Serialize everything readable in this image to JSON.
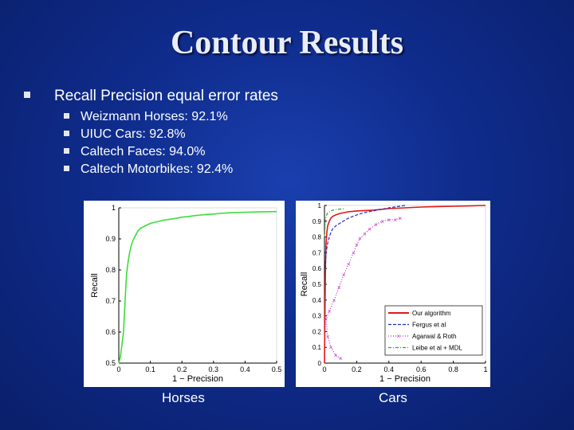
{
  "slide": {
    "title": "Contour Results",
    "main_bullet": "Recall Precision equal error rates",
    "sub_bullets": [
      "Weizmann Horses: 92.1%",
      "UIUC Cars: 92.8%",
      "Caltech Faces: 94.0%",
      "Caltech Motorbikes: 92.4%"
    ],
    "captions": {
      "left": "Horses",
      "right": "Cars"
    }
  },
  "colors": {
    "slide_bg": "#0f2c8c",
    "title": "#e9edf8",
    "bullet_square": "#e4e7f1"
  },
  "chart_data": [
    {
      "type": "line",
      "title": "",
      "xlabel": "1 − Precision",
      "ylabel": "Recall",
      "xlim": [
        0,
        0.5
      ],
      "ylim": [
        0.5,
        1
      ],
      "xticks": [
        "0",
        "0.1",
        "0.2",
        "0.3",
        "0.4",
        "0.5"
      ],
      "yticks": [
        "0.5",
        "0.6",
        "0.7",
        "0.8",
        "0.9",
        "1"
      ],
      "series": [
        {
          "color": "#3cdc3c",
          "style": "solid",
          "x": [
            0,
            0.005,
            0.01,
            0.015,
            0.018,
            0.02,
            0.022,
            0.025,
            0.03,
            0.035,
            0.04,
            0.045,
            0.05,
            0.055,
            0.06,
            0.07,
            0.08,
            0.09,
            0.1,
            0.12,
            0.14,
            0.16,
            0.18,
            0.2,
            0.22,
            0.24,
            0.26,
            0.28,
            0.3,
            0.32,
            0.35,
            0.4,
            0.45,
            0.5
          ],
          "y": [
            0.5,
            0.52,
            0.56,
            0.6,
            0.66,
            0.7,
            0.74,
            0.79,
            0.83,
            0.86,
            0.88,
            0.895,
            0.905,
            0.915,
            0.925,
            0.935,
            0.94,
            0.945,
            0.95,
            0.955,
            0.96,
            0.963,
            0.966,
            0.97,
            0.972,
            0.975,
            0.977,
            0.979,
            0.98,
            0.982,
            0.984,
            0.986,
            0.987,
            0.988
          ]
        }
      ]
    },
    {
      "type": "line",
      "title": "",
      "xlabel": "1 − Precision",
      "ylabel": "Recall",
      "xlim": [
        0,
        1
      ],
      "ylim": [
        0,
        1
      ],
      "xticks": [
        "0",
        "0.2",
        "0.4",
        "0.6",
        "0.8",
        "1"
      ],
      "yticks": [
        "0",
        "0.1",
        "0.2",
        "0.3",
        "0.4",
        "0.5",
        "0.6",
        "0.7",
        "0.8",
        "0.9",
        "1"
      ],
      "legend_position": "bottom-right",
      "series": [
        {
          "name": "Our algorithm",
          "color": "#e01818",
          "style": "solid",
          "x": [
            0,
            0.003,
            0.006,
            0.01,
            0.015,
            0.02,
            0.03,
            0.04,
            0.05,
            0.07,
            0.1,
            0.15,
            0.2,
            0.3,
            0.4,
            0.5,
            0.6,
            0.7,
            0.8,
            0.9,
            1
          ],
          "y": [
            0,
            0.3,
            0.6,
            0.76,
            0.83,
            0.87,
            0.9,
            0.92,
            0.93,
            0.94,
            0.95,
            0.96,
            0.965,
            0.97,
            0.98,
            0.985,
            0.99,
            0.993,
            0.995,
            0.997,
            1
          ]
        },
        {
          "name": "Fergus et al",
          "color": "#2030c0",
          "style": "dashed",
          "x": [
            0.005,
            0.01,
            0.02,
            0.03,
            0.04,
            0.05,
            0.07,
            0.1,
            0.15,
            0.2,
            0.25,
            0.3,
            0.35,
            0.4,
            0.5
          ],
          "y": [
            0.6,
            0.7,
            0.76,
            0.8,
            0.83,
            0.85,
            0.87,
            0.89,
            0.92,
            0.94,
            0.955,
            0.965,
            0.975,
            0.985,
            1
          ]
        },
        {
          "name": "Agarwal & Roth",
          "color": "#c030c0",
          "style": "dotted-x",
          "x": [
            0.1,
            0.07,
            0.04,
            0.02,
            0.01,
            0.03,
            0.06,
            0.09,
            0.12,
            0.15,
            0.18,
            0.2,
            0.22,
            0.25,
            0.28,
            0.32,
            0.36,
            0.4,
            0.44,
            0.47
          ],
          "y": [
            0.03,
            0.05,
            0.1,
            0.17,
            0.28,
            0.33,
            0.4,
            0.48,
            0.56,
            0.63,
            0.7,
            0.75,
            0.79,
            0.82,
            0.85,
            0.88,
            0.9,
            0.91,
            0.91,
            0.92
          ]
        },
        {
          "name": "Leibe et al + MDL",
          "color": "#30a030",
          "style": "dashdot",
          "x": [
            0,
            0.005,
            0.01,
            0.02,
            0.03,
            0.05,
            0.08,
            0.12
          ],
          "y": [
            0.8,
            0.9,
            0.93,
            0.955,
            0.96,
            0.97,
            0.975,
            0.98
          ]
        }
      ]
    }
  ]
}
